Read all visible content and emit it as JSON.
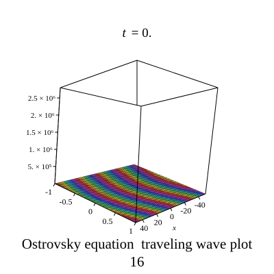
{
  "header": {
    "title_var": "t",
    "title_rest": "= 0."
  },
  "caption": {
    "line1": "Ostrovsky equation  traveling wave plot",
    "line2": "16"
  },
  "chart_data": {
    "type": "surface3d",
    "title": "t = 0.",
    "xlabel": "x",
    "ylabel": "",
    "zlabel": "",
    "xlim": [
      -50,
      50
    ],
    "ylim": [
      -1,
      1
    ],
    "zlim": [
      0,
      2800000
    ],
    "x_ticks": [
      "40",
      "20",
      "0",
      "-20",
      "-40"
    ],
    "y_ticks": [
      "-1",
      "-0.5",
      "0",
      "0.5",
      "1"
    ],
    "z_ticks": [
      "5. × 10⁵",
      "1. × 10⁶",
      "1.5 × 10⁶",
      "2. × 10⁶",
      "2.5 × 10⁶"
    ],
    "surface_value": 0,
    "colormap": "rainbow stripes (red, yellow, green, cyan, blue, magenta)",
    "box": true
  }
}
